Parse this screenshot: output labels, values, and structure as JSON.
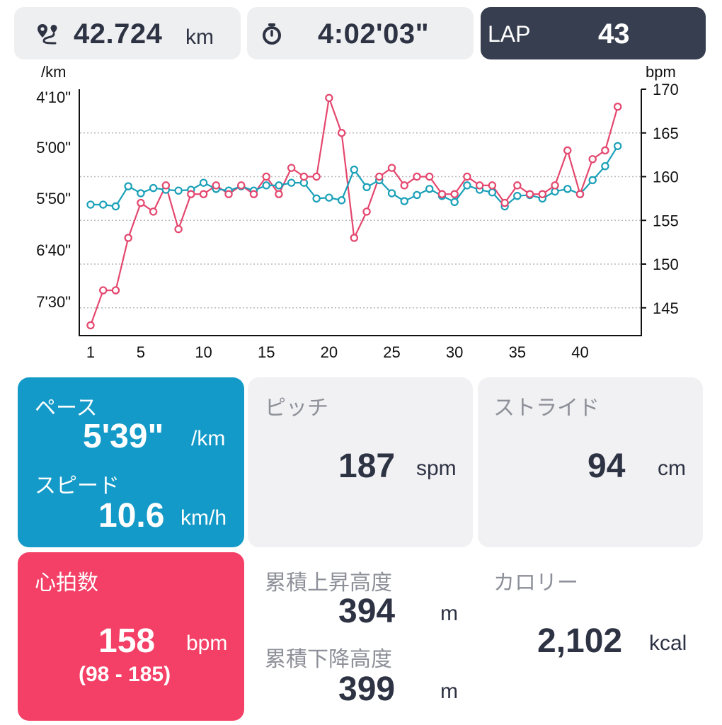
{
  "topbar": {
    "distance_value": "42.724",
    "distance_unit": "km",
    "time_value": "4:02'03\"",
    "lap_label": "LAP",
    "lap_value": "43"
  },
  "colors": {
    "pace_series": "#1aa0b8",
    "heart_series": "#e4476e",
    "pace_card": "#149ac8",
    "heart_card": "#f43f66",
    "lap_box": "#373e4f",
    "grey_card": "#f1f1f3"
  },
  "icons": {
    "distance": "route-pin-icon",
    "time": "stopwatch-icon"
  },
  "chart_data": {
    "type": "line",
    "left_axis_unit": "/km",
    "right_axis_unit": "bpm",
    "x_ticks": [
      "1",
      "5",
      "10",
      "15",
      "20",
      "25",
      "30",
      "35",
      "40"
    ],
    "left_ticks": [
      "4'10\"",
      "5'00\"",
      "5'50\"",
      "6'40\"",
      "7'30\""
    ],
    "right_ticks": [
      "170",
      "165",
      "160",
      "155",
      "150",
      "145"
    ],
    "right_ylim": [
      142,
      170
    ],
    "grid": "horizontal dotted",
    "x": [
      1,
      2,
      3,
      4,
      5,
      6,
      7,
      8,
      9,
      10,
      11,
      12,
      13,
      14,
      15,
      16,
      17,
      18,
      19,
      20,
      21,
      22,
      23,
      24,
      25,
      26,
      27,
      28,
      29,
      30,
      31,
      32,
      33,
      34,
      35,
      36,
      37,
      38,
      39,
      40,
      41,
      42,
      43
    ],
    "series": [
      {
        "color": "#1aa0b8",
        "axis": "left",
        "values_bpm_scale": [
          156.8,
          156.8,
          156.6,
          158.9,
          158.1,
          158.7,
          158.5,
          158.4,
          158.5,
          159.3,
          158.6,
          158.4,
          158.9,
          158.4,
          159.0,
          159.0,
          159.3,
          159.3,
          157.5,
          157.6,
          157.3,
          160.8,
          158.8,
          159.6,
          158.1,
          157.2,
          157.9,
          158.6,
          157.8,
          157.1,
          159.0,
          158.5,
          158.2,
          156.6,
          157.8,
          157.9,
          157.5,
          158.3,
          158.6,
          158.0,
          159.6,
          161.2,
          163.5
        ]
      },
      {
        "color": "#e4476e",
        "axis": "right",
        "values": [
          143,
          147,
          147,
          153,
          157,
          156,
          159,
          154,
          158,
          158,
          159,
          158,
          159,
          158,
          160,
          158,
          161,
          160,
          160,
          169,
          165,
          153,
          156,
          160,
          161,
          159,
          160,
          160,
          158,
          158,
          160,
          159,
          159,
          157,
          159,
          158,
          158,
          159,
          163,
          158,
          162,
          163,
          168
        ]
      }
    ]
  },
  "cards": {
    "pace": {
      "label": "ペース",
      "value": "5'39\"",
      "unit": "/km"
    },
    "speed": {
      "label": "スピード",
      "value": "10.6",
      "unit": "km/h"
    },
    "pitch": {
      "label": "ピッチ",
      "value": "187",
      "unit": "spm"
    },
    "stride": {
      "label": "ストライド",
      "value": "94",
      "unit": "cm"
    },
    "heart": {
      "label": "心拍数",
      "value": "158",
      "unit": "bpm",
      "range": "(98 - 185)"
    },
    "ascent": {
      "label": "累積上昇高度",
      "value": "394",
      "unit": "m"
    },
    "descent": {
      "label": "累積下降高度",
      "value": "399",
      "unit": "m"
    },
    "calorie": {
      "label": "カロリー",
      "value": "2,102",
      "unit": "kcal"
    }
  }
}
